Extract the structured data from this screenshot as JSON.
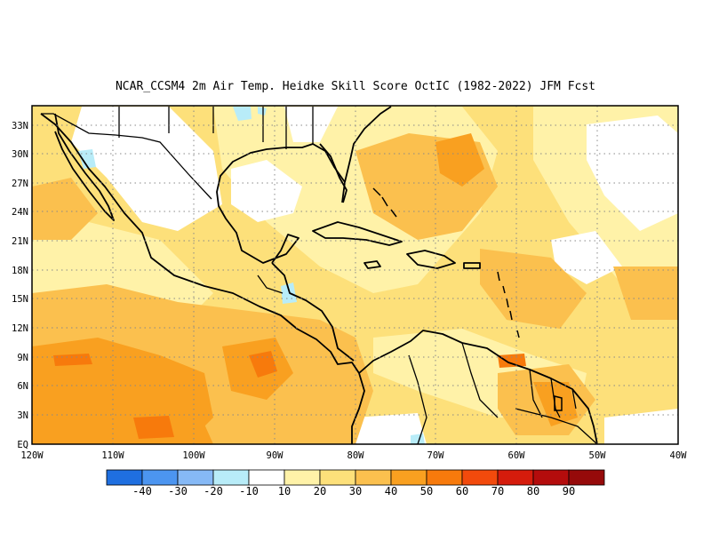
{
  "title": "NCAR_CCSM4  2m Air Temp. Heidke Skill Score OctIC (1982-2022) JFM Fcst",
  "map": {
    "lat_labels": [
      "33N",
      "30N",
      "27N",
      "24N",
      "21N",
      "18N",
      "15N",
      "12N",
      "9N",
      "6N",
      "3N",
      "EQ"
    ],
    "lon_labels": [
      "120W",
      "110W",
      "100W",
      "90W",
      "80W",
      "70W",
      "60W",
      "50W",
      "40W"
    ],
    "lon_range": [
      -120,
      -40
    ],
    "lat_range": [
      0,
      35
    ]
  },
  "colorbar": {
    "labels": [
      "-40",
      "-30",
      "-20",
      "-10",
      "10",
      "20",
      "30",
      "40",
      "50",
      "60",
      "70",
      "80",
      "90"
    ],
    "colors": [
      "#1f6fe0",
      "#4c95f0",
      "#86b9f6",
      "#b8ecf8",
      "#ffffff",
      "#fff2a8",
      "#fde07a",
      "#fbc04e",
      "#f9a020",
      "#f77a0c",
      "#f24a0c",
      "#d51c0c",
      "#b40c0c",
      "#960a0a"
    ]
  }
}
